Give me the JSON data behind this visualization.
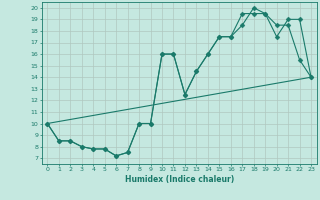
{
  "xlabel": "Humidex (Indice chaleur)",
  "xlim": [
    -0.5,
    23.5
  ],
  "ylim": [
    6.5,
    20.5
  ],
  "xticks": [
    0,
    1,
    2,
    3,
    4,
    5,
    6,
    7,
    8,
    9,
    10,
    11,
    12,
    13,
    14,
    15,
    16,
    17,
    18,
    19,
    20,
    21,
    22,
    23
  ],
  "yticks": [
    7,
    8,
    9,
    10,
    11,
    12,
    13,
    14,
    15,
    16,
    17,
    18,
    19,
    20
  ],
  "background_color": "#c5e8e0",
  "grid_color": "#b0c8c0",
  "line_color": "#1a7a6a",
  "line1_x": [
    0,
    1,
    2,
    3,
    4,
    5,
    6,
    7,
    8,
    9,
    10,
    11,
    12,
    13,
    14,
    15,
    16,
    17,
    18,
    19,
    20,
    21,
    22,
    23
  ],
  "line1_y": [
    10,
    8.5,
    8.5,
    8,
    7.8,
    7.8,
    7.2,
    7.5,
    10,
    10,
    16,
    16,
    12.5,
    14.5,
    16,
    17.5,
    17.5,
    18.5,
    20,
    19.5,
    18.5,
    18.5,
    15.5,
    14
  ],
  "line2_x": [
    0,
    1,
    2,
    3,
    4,
    5,
    6,
    7,
    8,
    9,
    10,
    11,
    12,
    13,
    14,
    15,
    16,
    17,
    18,
    19,
    20,
    21,
    22,
    23
  ],
  "line2_y": [
    10,
    8.5,
    8.5,
    8,
    7.8,
    7.8,
    7.2,
    7.5,
    10,
    10,
    16,
    16,
    12.5,
    14.5,
    16,
    17.5,
    17.5,
    19.5,
    19.5,
    19.5,
    17.5,
    19,
    19,
    14
  ],
  "line3_x": [
    0,
    23
  ],
  "line3_y": [
    10,
    14
  ]
}
